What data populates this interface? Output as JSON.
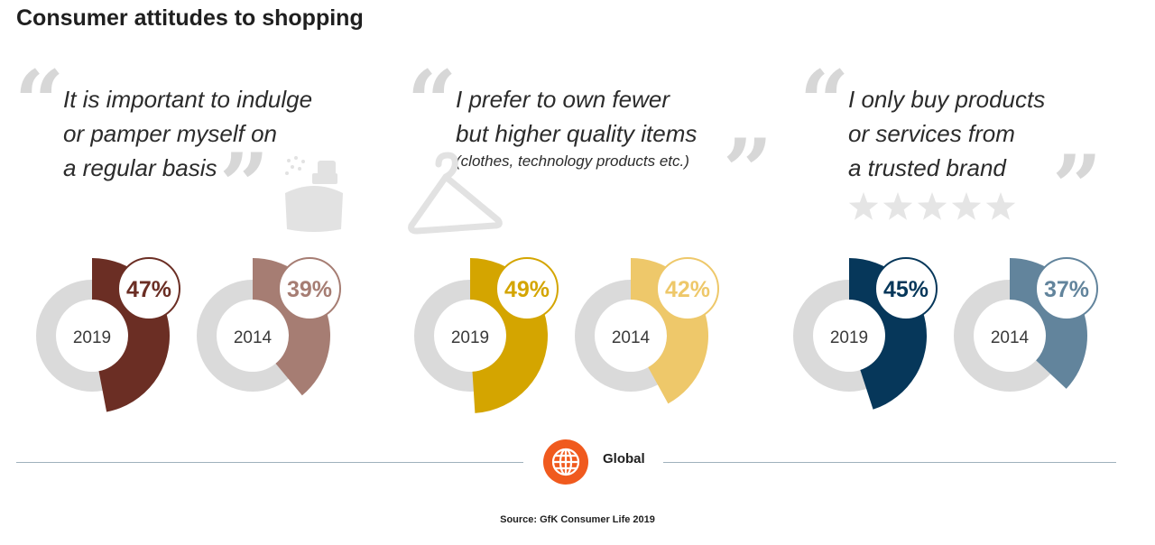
{
  "title": "Consumer attitudes to shopping",
  "quotes": [
    {
      "lines": [
        "It is important to indulge",
        "or pamper myself on",
        "a regular basis"
      ],
      "sub": "",
      "icon": "perfume-bottle-icon"
    },
    {
      "lines": [
        "I prefer to own fewer",
        "but higher quality items"
      ],
      "sub": "(clothes, technology products etc.)",
      "icon": "clothes-hanger-icon"
    },
    {
      "lines": [
        "I only buy products",
        "or services from",
        "a trusted brand"
      ],
      "sub": "",
      "icon": "five-stars-icon"
    }
  ],
  "chart_data": {
    "type": "pie",
    "groups": [
      {
        "statement_index": 0,
        "series": [
          {
            "year": "2019",
            "label": "47%",
            "value": 47,
            "color": "#6b2e24"
          },
          {
            "year": "2014",
            "label": "39%",
            "value": 39,
            "color": "#a67d73"
          }
        ]
      },
      {
        "statement_index": 1,
        "series": [
          {
            "year": "2019",
            "label": "49%",
            "value": 49,
            "color": "#d4a500"
          },
          {
            "year": "2014",
            "label": "42%",
            "value": 42,
            "color": "#eec86a"
          }
        ]
      },
      {
        "statement_index": 2,
        "series": [
          {
            "year": "2019",
            "label": "45%",
            "value": 45,
            "color": "#06375a"
          },
          {
            "year": "2014",
            "label": "37%",
            "value": 37,
            "color": "#62849c"
          }
        ]
      }
    ],
    "ring_color": "#dadada"
  },
  "footer": {
    "region": "Global",
    "region_icon": "globe-icon",
    "accent": "#f05a1e",
    "source": "Source: GfK Consumer Life 2019"
  }
}
